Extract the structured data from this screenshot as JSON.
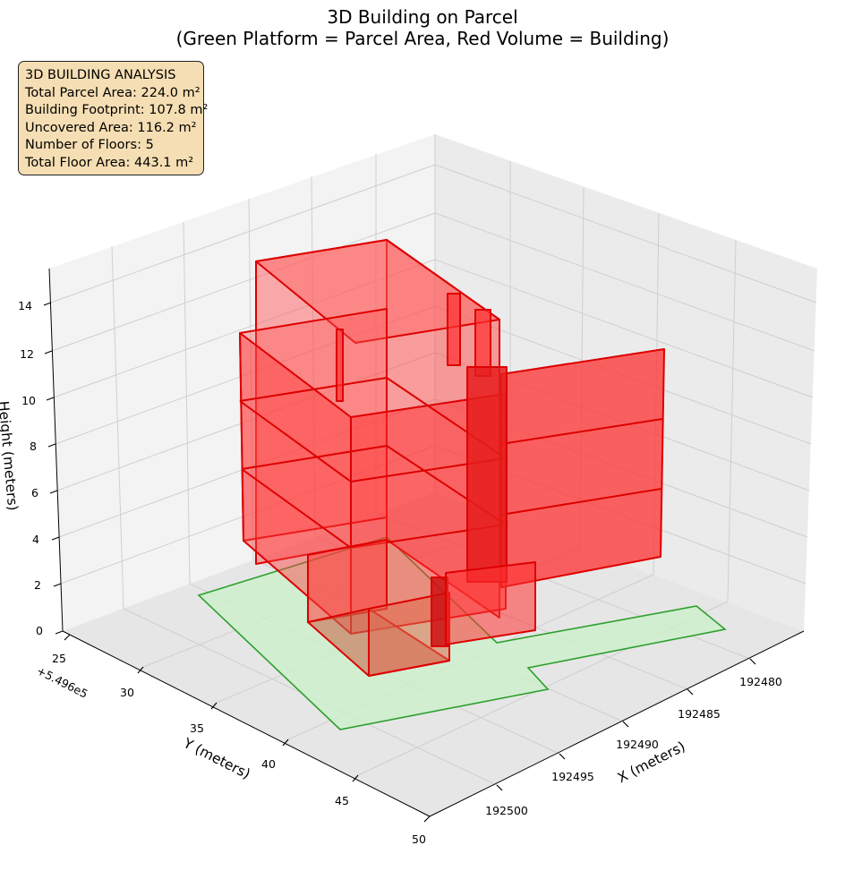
{
  "title_line1": "3D Building on Parcel",
  "title_line2": "(Green Platform = Parcel Area, Red Volume = Building)",
  "info_box": {
    "heading": "3D BUILDING ANALYSIS",
    "lines": [
      "Total Parcel Area: 224.0 m²",
      "Building Footprint: 107.8 m²",
      "Uncovered Area: 116.2 m²",
      "Number of Floors: 5",
      "Total Floor Area: 443.1 m²"
    ]
  },
  "chart_data": {
    "type": "3d-polygon",
    "xlabel": "X (meters)",
    "ylabel": "Y (meters)",
    "zlabel": "Height (meters)",
    "y_offset_label": "+5.496e5",
    "x_ticks": [
      "192480",
      "192485",
      "192490",
      "192495",
      "192500"
    ],
    "y_ticks": [
      "25",
      "30",
      "35",
      "40",
      "45",
      "50"
    ],
    "z_ticks": [
      "0",
      "2",
      "4",
      "6",
      "8",
      "10",
      "12",
      "14"
    ],
    "colors": {
      "parcel_fill": "#cdeecd",
      "parcel_edge": "#2ca02c",
      "building_fill": "#ff3333",
      "building_edge": "#dd0000",
      "pane": "#f2f2f2",
      "grid": "#cfcfcf"
    },
    "parcel_area_m2": 224.0,
    "building_footprint_m2": 107.8,
    "floors": 5,
    "total_floor_area_m2": 443.1
  }
}
